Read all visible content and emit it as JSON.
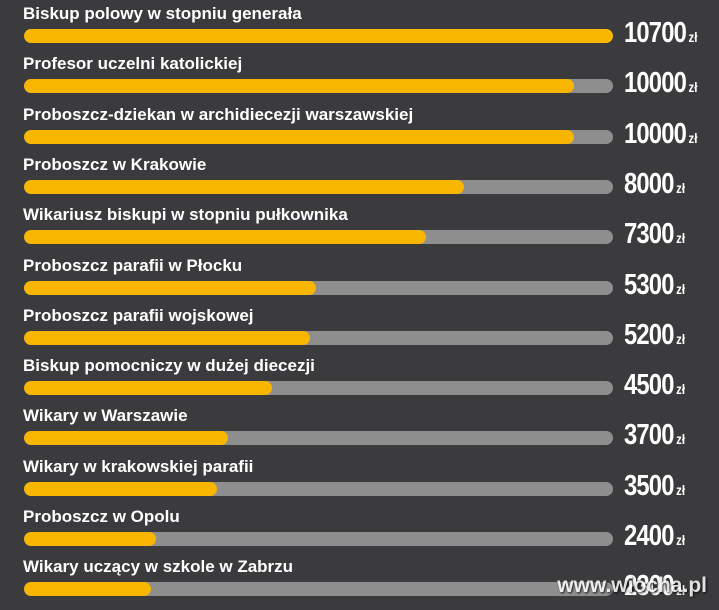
{
  "chart_data": {
    "type": "bar",
    "orientation": "horizontal",
    "unit": "zł",
    "max": 10700,
    "categories": [
      "Biskup polowy w stopniu generała",
      "Profesor uczelni katolickiej",
      "Proboszcz-dziekan w archidiecezji warszawskiej",
      "Proboszcz w Krakowie",
      "Wikariusz biskupi w stopniu pułkownika",
      "Proboszcz parafii w Płocku",
      "Proboszcz parafii wojskowej",
      "Biskup pomocniczy w dużej diecezji",
      "Wikary w Warszawie",
      "Wikary w krakowskiej parafii",
      "Proboszcz w Opolu",
      "Wikary uczący w szkole w Zabrzu"
    ],
    "values": [
      10700,
      10000,
      10000,
      8000,
      7300,
      5300,
      5200,
      4500,
      3700,
      3500,
      2400,
      2300
    ],
    "value_labels": [
      "10700",
      "10000",
      "10000",
      "8000",
      "7300",
      "5300",
      "5200",
      "4500",
      "3700",
      "3500",
      "2400",
      "2300"
    ],
    "colors": {
      "fill": "#f8b600",
      "track": "#8e8e8e",
      "background": "#3b3b3d"
    }
  },
  "watermark": "www.wiocha.pl"
}
